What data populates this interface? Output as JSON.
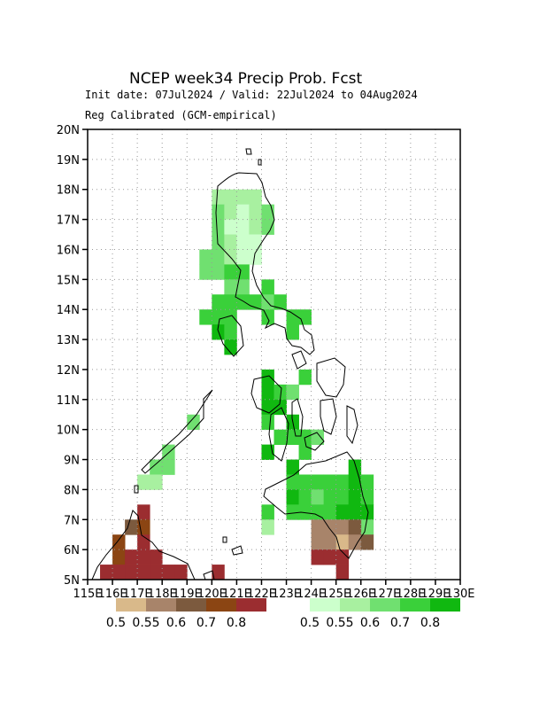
{
  "title": "NCEP week34 Precip Prob. Fcst",
  "subtitle_dates": "Init date: 07Jul2024 / Valid: 22Jul2024 to 04Aug2024",
  "subtitle_method": "Reg Calibrated (GCM-empirical)",
  "map": {
    "lon_range": [
      115,
      130
    ],
    "lat_range": [
      5,
      20
    ],
    "lon_ticks": [
      "115E",
      "116E",
      "117E",
      "118E",
      "119E",
      "120E",
      "121E",
      "122E",
      "123E",
      "124E",
      "125E",
      "126E",
      "127E",
      "128E",
      "129E",
      "130E"
    ],
    "lat_ticks": [
      "5N",
      "6N",
      "7N",
      "8N",
      "9N",
      "10N",
      "11N",
      "12N",
      "13N",
      "14N",
      "15N",
      "16N",
      "17N",
      "18N",
      "19N",
      "20N"
    ],
    "grid": true,
    "cell_size_deg": 0.5
  },
  "colors": {
    "dry": [
      "#d9b98a",
      "#a8846a",
      "#7c5a3e",
      "#8b4513",
      "#9b2d30"
    ],
    "wet": [
      "#ccffcc",
      "#a8f0a0",
      "#70e070",
      "#3ad03a",
      "#10b810"
    ]
  },
  "legend_dry": {
    "labels": [
      "0.5",
      "0.55",
      "0.6",
      "0.7",
      "0.8"
    ]
  },
  "legend_wet": {
    "labels": [
      "0.5",
      "0.55",
      "0.6",
      "0.7",
      "0.8"
    ]
  },
  "cells": [
    [
      120.25,
      17.75,
      1
    ],
    [
      120.75,
      17.75,
      1
    ],
    [
      121.25,
      17.75,
      1
    ],
    [
      121.75,
      17.75,
      1
    ],
    [
      120.25,
      17.25,
      2
    ],
    [
      120.75,
      17.25,
      1
    ],
    [
      121.25,
      17.25,
      0
    ],
    [
      121.75,
      17.25,
      1
    ],
    [
      122.25,
      17.25,
      2
    ],
    [
      120.25,
      16.75,
      2
    ],
    [
      120.75,
      16.75,
      0
    ],
    [
      121.25,
      16.75,
      0
    ],
    [
      121.75,
      16.75,
      1
    ],
    [
      122.25,
      16.75,
      2
    ],
    [
      120.25,
      16.25,
      2
    ],
    [
      120.75,
      16.25,
      1
    ],
    [
      121.25,
      16.25,
      0
    ],
    [
      121.75,
      16.25,
      0
    ],
    [
      119.75,
      15.75,
      2
    ],
    [
      120.25,
      15.75,
      2
    ],
    [
      120.75,
      15.75,
      1
    ],
    [
      121.25,
      15.75,
      0
    ],
    [
      121.75,
      15.75,
      0
    ],
    [
      119.75,
      15.25,
      2
    ],
    [
      120.25,
      15.25,
      2
    ],
    [
      120.75,
      15.25,
      3
    ],
    [
      121.25,
      15.25,
      3
    ],
    [
      120.75,
      14.75,
      2
    ],
    [
      121.25,
      14.75,
      2
    ],
    [
      122.25,
      14.75,
      3
    ],
    [
      120.25,
      14.25,
      3
    ],
    [
      120.75,
      14.25,
      3
    ],
    [
      121.25,
      14.25,
      3
    ],
    [
      121.75,
      14.25,
      3
    ],
    [
      122.25,
      14.25,
      2
    ],
    [
      122.75,
      14.25,
      3
    ],
    [
      119.75,
      13.75,
      3
    ],
    [
      120.25,
      13.75,
      3
    ],
    [
      120.75,
      13.75,
      3
    ],
    [
      122.25,
      13.75,
      3
    ],
    [
      123.25,
      13.75,
      3
    ],
    [
      123.75,
      13.75,
      3
    ],
    [
      120.25,
      13.25,
      4
    ],
    [
      120.75,
      13.25,
      3
    ],
    [
      123.25,
      13.25,
      3
    ],
    [
      120.75,
      12.75,
      4
    ],
    [
      122.25,
      11.75,
      4
    ],
    [
      123.75,
      11.75,
      3
    ],
    [
      122.25,
      11.25,
      4
    ],
    [
      122.75,
      11.25,
      3
    ],
    [
      123.25,
      11.25,
      2
    ],
    [
      122.25,
      10.75,
      4
    ],
    [
      122.75,
      10.75,
      4
    ],
    [
      122.25,
      10.25,
      3
    ],
    [
      123.25,
      10.25,
      4
    ],
    [
      122.75,
      9.75,
      3
    ],
    [
      123.25,
      9.75,
      3
    ],
    [
      123.75,
      9.75,
      3
    ],
    [
      124.25,
      9.75,
      2
    ],
    [
      122.25,
      9.25,
      4
    ],
    [
      123.75,
      9.25,
      3
    ],
    [
      123.25,
      8.75,
      4
    ],
    [
      125.75,
      8.75,
      4
    ],
    [
      123.25,
      8.25,
      3
    ],
    [
      123.75,
      8.25,
      3
    ],
    [
      124.25,
      8.25,
      3
    ],
    [
      124.75,
      8.25,
      3
    ],
    [
      125.25,
      8.25,
      3
    ],
    [
      125.75,
      8.25,
      4
    ],
    [
      126.25,
      8.25,
      3
    ],
    [
      123.25,
      7.75,
      4
    ],
    [
      123.75,
      7.75,
      3
    ],
    [
      124.25,
      7.75,
      2
    ],
    [
      124.75,
      7.75,
      3
    ],
    [
      125.25,
      7.75,
      3
    ],
    [
      125.75,
      7.75,
      4
    ],
    [
      126.25,
      7.75,
      3
    ],
    [
      122.25,
      7.25,
      3
    ],
    [
      123.25,
      7.25,
      3
    ],
    [
      123.75,
      7.25,
      3
    ],
    [
      124.25,
      7.25,
      3
    ],
    [
      124.75,
      7.25,
      3
    ],
    [
      125.25,
      7.25,
      4
    ],
    [
      125.75,
      7.25,
      4
    ],
    [
      126.25,
      7.25,
      4
    ],
    [
      122.25,
      6.75,
      1
    ],
    [
      126.25,
      6.75,
      2
    ],
    [
      118.25,
      9.25,
      2
    ],
    [
      117.75,
      8.75,
      2
    ],
    [
      118.25,
      8.75,
      2
    ],
    [
      117.25,
      8.25,
      1
    ],
    [
      117.75,
      8.25,
      1
    ],
    [
      119.25,
      10.25,
      2
    ]
  ],
  "dry_cells": [
    [
      117.25,
      7.25,
      4
    ],
    [
      116.75,
      6.75,
      2
    ],
    [
      117.25,
      6.75,
      3
    ],
    [
      116.25,
      6.25,
      3
    ],
    [
      117.25,
      6.25,
      4
    ],
    [
      116.25,
      5.75,
      3
    ],
    [
      116.75,
      5.75,
      4
    ],
    [
      117.25,
      5.75,
      4
    ],
    [
      117.75,
      5.75,
      4
    ],
    [
      115.75,
      5.25,
      4
    ],
    [
      116.25,
      5.25,
      4
    ],
    [
      116.75,
      5.25,
      4
    ],
    [
      117.25,
      5.25,
      4
    ],
    [
      117.75,
      5.25,
      4
    ],
    [
      118.25,
      5.25,
      4
    ],
    [
      118.75,
      5.25,
      4
    ],
    [
      120.25,
      5.25,
      4
    ],
    [
      124.25,
      6.75,
      1
    ],
    [
      124.75,
      6.75,
      1
    ],
    [
      125.25,
      6.75,
      1
    ],
    [
      125.75,
      6.75,
      2
    ],
    [
      124.25,
      6.25,
      1
    ],
    [
      124.75,
      6.25,
      1
    ],
    [
      125.25,
      6.25,
      0
    ],
    [
      125.75,
      6.25,
      1
    ],
    [
      126.25,
      6.25,
      2
    ],
    [
      124.25,
      5.75,
      4
    ],
    [
      124.75,
      5.75,
      4
    ],
    [
      125.25,
      5.75,
      4
    ],
    [
      125.25,
      5.25,
      4
    ]
  ]
}
